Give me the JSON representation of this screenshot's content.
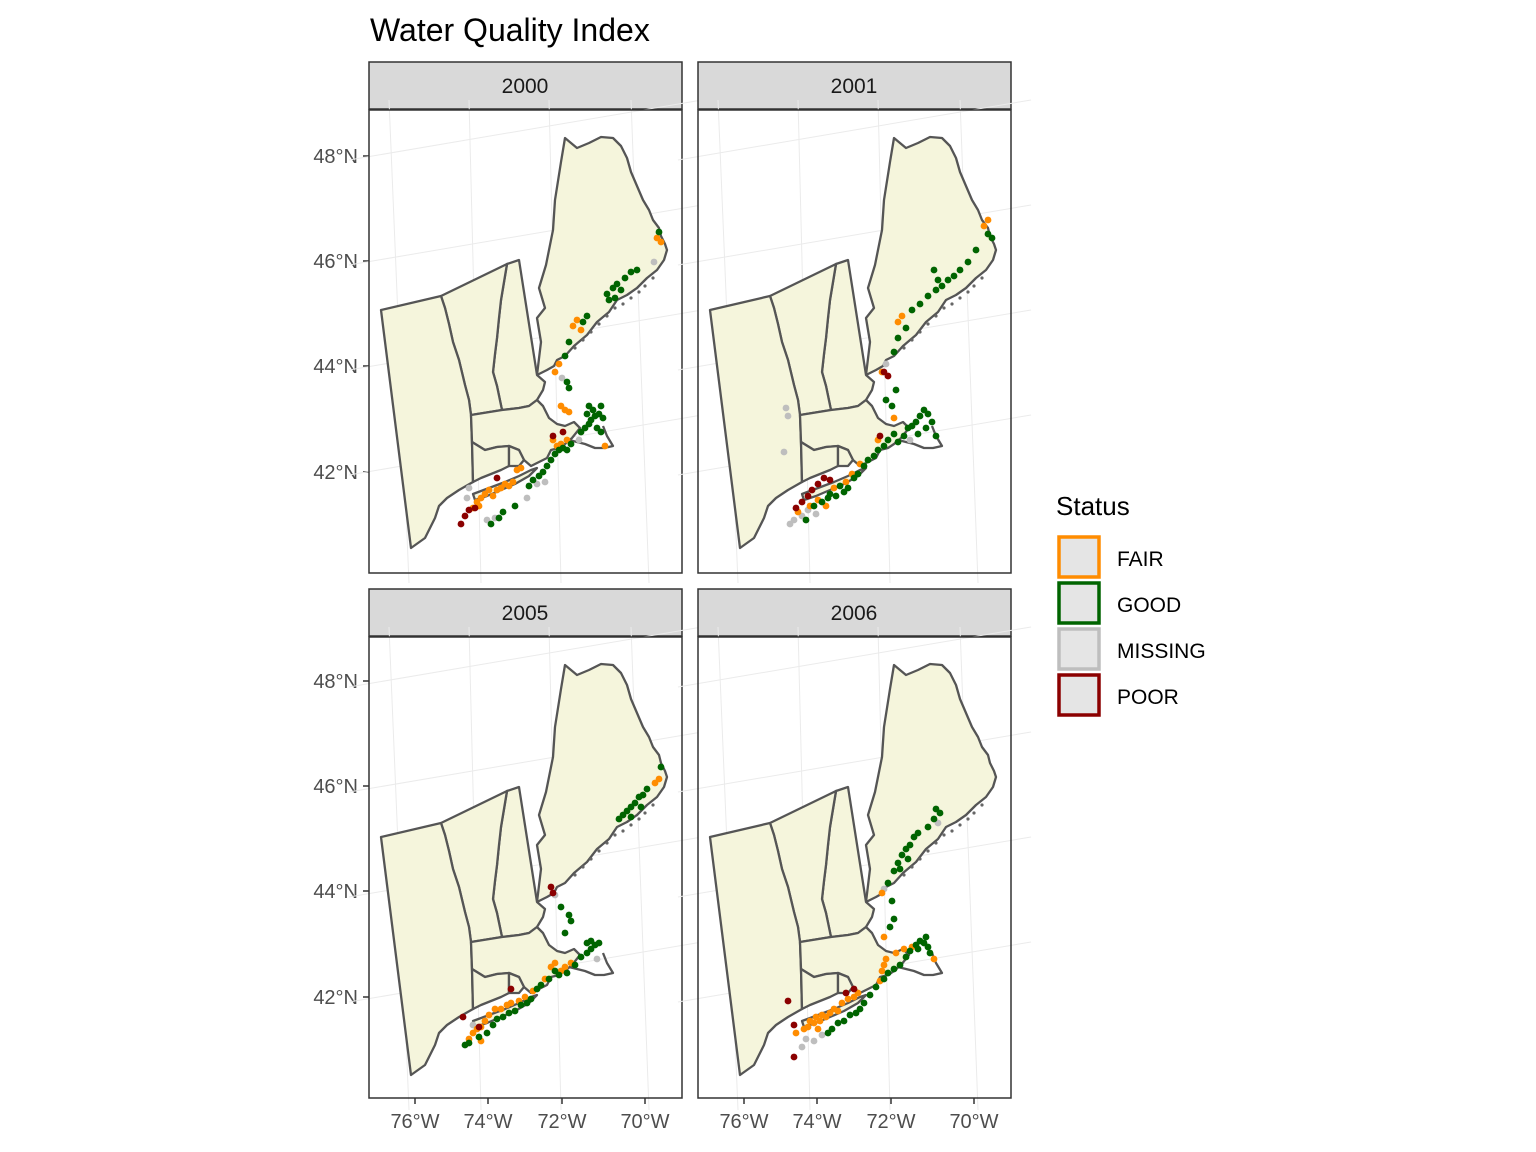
{
  "title": "Water Quality Index",
  "panels": [
    {
      "label": "2000"
    },
    {
      "label": "2001"
    },
    {
      "label": "2005"
    },
    {
      "label": "2006"
    }
  ],
  "axes": {
    "x_ticks": [
      "76°W",
      "74°W",
      "72°W",
      "70°W"
    ],
    "y_ticks": [
      "48°N",
      "46°N",
      "44°N",
      "42°N"
    ]
  },
  "legend": {
    "title": "Status",
    "items": [
      {
        "label": "FAIR",
        "color": "#FF8C00"
      },
      {
        "label": "GOOD",
        "color": "#006400"
      },
      {
        "label": "MISSING",
        "color": "#BEBEBE"
      },
      {
        "label": "POOR",
        "color": "#8B0000"
      }
    ]
  },
  "colors": {
    "land": "#F5F5DC",
    "border": "#555555",
    "strip": "#D9D9D9",
    "grid": "#EBEBEB"
  }
}
